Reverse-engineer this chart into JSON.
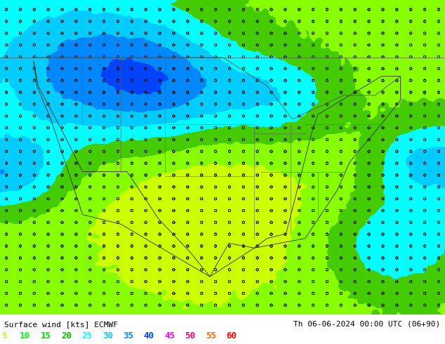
{
  "title_left": "Surface wind [kts] ECMWF",
  "title_right": "Th 06-06-2024 00:00 UTC (06+90)",
  "legend_values": [
    5,
    10,
    15,
    20,
    25,
    30,
    35,
    40,
    45,
    50,
    55,
    60
  ],
  "legend_colors": [
    "#adff2f",
    "#00ff00",
    "#00dd00",
    "#00bb00",
    "#00ffff",
    "#00ccff",
    "#0088ff",
    "#0044ff",
    "#ff00ff",
    "#ff0077",
    "#ff6600",
    "#ff0000"
  ],
  "colormap_levels": [
    0,
    5,
    10,
    15,
    20,
    25,
    30,
    35,
    40,
    45,
    50,
    55,
    60
  ],
  "colormap_colors": [
    "#ffff00",
    "#ccff00",
    "#88ff00",
    "#44cc00",
    "#00ffff",
    "#00ccff",
    "#0088ff",
    "#0044ff",
    "#ff00ff",
    "#ff0077",
    "#ff6600",
    "#ff0000"
  ],
  "bg_color": "#ffffff",
  "fig_width": 6.34,
  "fig_height": 4.9,
  "dpi": 100,
  "map_extent": [
    -130,
    -60,
    22,
    55
  ],
  "wind_seed": 42,
  "barb_seed": 99,
  "font_size_title": 8,
  "font_size_legend": 9
}
